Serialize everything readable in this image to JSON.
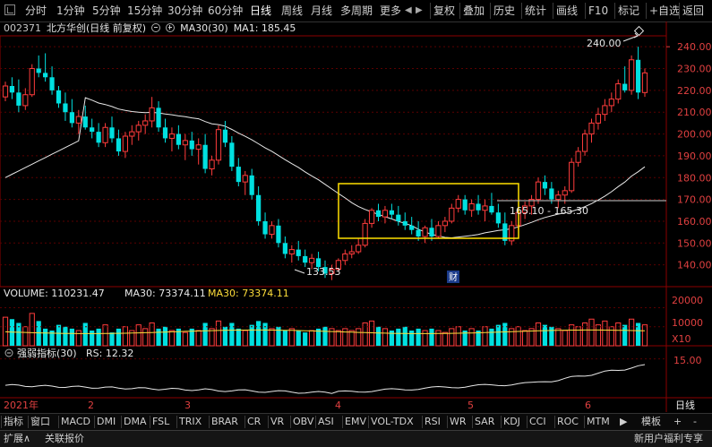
{
  "toolbar": {
    "left_tabs": [
      "分时",
      "1分钟",
      "5分钟",
      "15分钟",
      "30分钟",
      "60分钟",
      "日线",
      "周线",
      "月线",
      "多周期",
      "更多"
    ],
    "active_tab": "日线",
    "right_tabs": [
      "复权",
      "叠加",
      "历史",
      "统计",
      "画线",
      "F10",
      "标记",
      "+自选",
      "返回"
    ]
  },
  "stock": {
    "code": "002371",
    "name": "北方华创(日线 前复权)",
    "ma30_label": "MA30(30)",
    "ma1": "MA1: 185.45"
  },
  "price_axis": {
    "ticks": [
      "240.00",
      "230.00",
      "220.00",
      "210.00",
      "200.00",
      "190.00",
      "180.00",
      "170.00",
      "160.00",
      "150.00",
      "140.00"
    ]
  },
  "annotations": {
    "high": "240.00",
    "low": "133.53",
    "range": "165.10 - 165.30",
    "event": "财"
  },
  "volume": {
    "title": "VOLUME: 110231.47",
    "ma30": "MA30: 73374.11",
    "ma30_b": "MA30: 73374.11",
    "axis_ticks": [
      "20000",
      "10000"
    ],
    "unit": "X10"
  },
  "rs": {
    "title": "强弱指标(30)",
    "value": "RS: 12.32",
    "axis_tick": "15.00"
  },
  "time_axis": {
    "labels": [
      "2021年",
      "2",
      "3",
      "4",
      "5",
      "6"
    ],
    "period": "日线"
  },
  "indicator_tabs": [
    "指标",
    "窗口",
    "MACD",
    "DMI",
    "DMA",
    "FSL",
    "TRIX",
    "BRAR",
    "CR",
    "VR",
    "OBV",
    "ASI",
    "EMV",
    "VOL-TDX",
    "RSI",
    "WR",
    "SAR",
    "KDJ",
    "CCI",
    "ROC",
    "MTM"
  ],
  "indicator_right": [
    "模板",
    "+",
    "-"
  ],
  "status": {
    "left1": "扩展∧",
    "left2": "关联报价",
    "right": "新用户福利专享"
  },
  "colors": {
    "up": "#ff3c3c",
    "down": "#00e0e0",
    "ma": "#e8e8e8",
    "box": "#ffe000",
    "rs": "#e8e8e8"
  },
  "chart_data": {
    "type": "candlestick",
    "ylim": [
      130,
      245
    ],
    "ohlc": [
      [
        217,
        224,
        215,
        222
      ],
      [
        222,
        226,
        216,
        219
      ],
      [
        219,
        225,
        210,
        213
      ],
      [
        213,
        221,
        211,
        218
      ],
      [
        218,
        232,
        217,
        230
      ],
      [
        230,
        236,
        226,
        228
      ],
      [
        228,
        237,
        224,
        226
      ],
      [
        226,
        231,
        218,
        220
      ],
      [
        220,
        222,
        212,
        214
      ],
      [
        214,
        219,
        206,
        210
      ],
      [
        210,
        216,
        203,
        205
      ],
      [
        205,
        211,
        200,
        208
      ],
      [
        208,
        213,
        202,
        203
      ],
      [
        203,
        207,
        198,
        201
      ],
      [
        201,
        205,
        194,
        196
      ],
      [
        196,
        205,
        194,
        203
      ],
      [
        203,
        208,
        196,
        198
      ],
      [
        198,
        202,
        190,
        192
      ],
      [
        192,
        201,
        189,
        199
      ],
      [
        199,
        204,
        195,
        201
      ],
      [
        201,
        206,
        197,
        204
      ],
      [
        204,
        209,
        200,
        206
      ],
      [
        206,
        217,
        203,
        212
      ],
      [
        212,
        215,
        201,
        203
      ],
      [
        203,
        207,
        196,
        198
      ],
      [
        198,
        203,
        192,
        200
      ],
      [
        200,
        204,
        193,
        195
      ],
      [
        195,
        200,
        188,
        197
      ],
      [
        197,
        201,
        190,
        193
      ],
      [
        193,
        198,
        186,
        195
      ],
      [
        195,
        200,
        182,
        184
      ],
      [
        184,
        190,
        181,
        188
      ],
      [
        188,
        204,
        186,
        202
      ],
      [
        202,
        206,
        194,
        196
      ],
      [
        196,
        199,
        183,
        185
      ],
      [
        185,
        189,
        176,
        178
      ],
      [
        178,
        183,
        172,
        181
      ],
      [
        181,
        184,
        170,
        172
      ],
      [
        172,
        176,
        158,
        160
      ],
      [
        160,
        164,
        152,
        154
      ],
      [
        154,
        160,
        152,
        158
      ],
      [
        158,
        161,
        148,
        150
      ],
      [
        150,
        153,
        143,
        145
      ],
      [
        145,
        149,
        141,
        147
      ],
      [
        147,
        151,
        142,
        144
      ],
      [
        144,
        147,
        139,
        141
      ],
      [
        141,
        145,
        138,
        143
      ],
      [
        143,
        146,
        137,
        139
      ],
      [
        139,
        142,
        134,
        136
      ],
      [
        136,
        140,
        133,
        138
      ],
      [
        138,
        143,
        137,
        142
      ],
      [
        142,
        147,
        140,
        145
      ],
      [
        145,
        149,
        143,
        146
      ],
      [
        146,
        152,
        145,
        149
      ],
      [
        149,
        161,
        148,
        159
      ],
      [
        159,
        166,
        157,
        165
      ],
      [
        165,
        168,
        160,
        162
      ],
      [
        162,
        167,
        159,
        165
      ],
      [
        165,
        168,
        161,
        163
      ],
      [
        163,
        167,
        158,
        160
      ],
      [
        160,
        164,
        156,
        158
      ],
      [
        158,
        162,
        154,
        156
      ],
      [
        156,
        160,
        151,
        153
      ],
      [
        153,
        158,
        150,
        157
      ],
      [
        157,
        161,
        151,
        153
      ],
      [
        153,
        160,
        152,
        158
      ],
      [
        158,
        162,
        155,
        160
      ],
      [
        160,
        168,
        159,
        166
      ],
      [
        166,
        172,
        164,
        170
      ],
      [
        170,
        172,
        163,
        165
      ],
      [
        165,
        170,
        162,
        168
      ],
      [
        168,
        172,
        163,
        165
      ],
      [
        165,
        170,
        160,
        167
      ],
      [
        167,
        173,
        163,
        164
      ],
      [
        164,
        168,
        157,
        159
      ],
      [
        159,
        164,
        149,
        151
      ],
      [
        151,
        160,
        149,
        158
      ],
      [
        158,
        166,
        156,
        164
      ],
      [
        164,
        169,
        161,
        167
      ],
      [
        167,
        172,
        163,
        170
      ],
      [
        170,
        180,
        168,
        178
      ],
      [
        178,
        181,
        172,
        175
      ],
      [
        175,
        178,
        168,
        170
      ],
      [
        170,
        174,
        166,
        172
      ],
      [
        172,
        176,
        168,
        174
      ],
      [
        174,
        189,
        173,
        187
      ],
      [
        187,
        194,
        185,
        192
      ],
      [
        192,
        202,
        190,
        200
      ],
      [
        200,
        207,
        196,
        205
      ],
      [
        205,
        212,
        202,
        209
      ],
      [
        209,
        216,
        206,
        213
      ],
      [
        213,
        219,
        210,
        216
      ],
      [
        216,
        225,
        214,
        223
      ],
      [
        223,
        231,
        219,
        220
      ],
      [
        220,
        236,
        218,
        234
      ],
      [
        234,
        240,
        216,
        219
      ],
      [
        219,
        230,
        217,
        228
      ]
    ],
    "ma30_note": "30-day moving average line",
    "volume_range": [
      0,
      24000
    ],
    "rs_range": [
      10,
      16
    ]
  }
}
